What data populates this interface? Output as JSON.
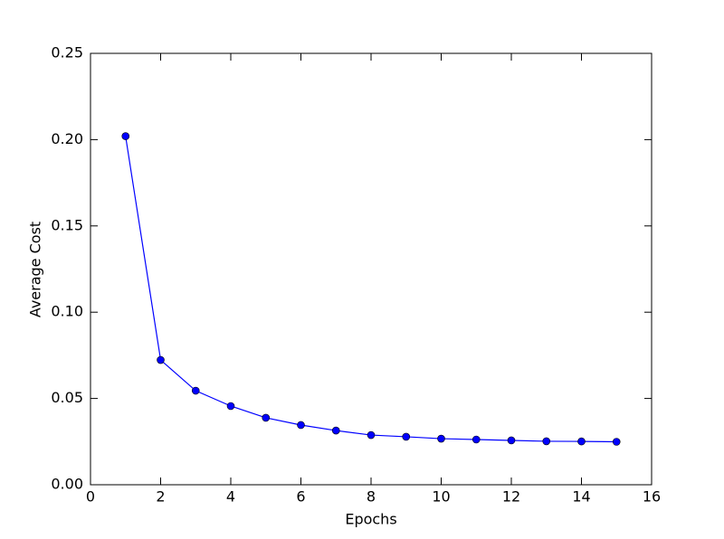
{
  "chart_data": {
    "type": "line",
    "xlabel": "Epochs",
    "ylabel": "Average Cost",
    "x": [
      1,
      2,
      3,
      4,
      5,
      6,
      7,
      8,
      9,
      10,
      11,
      12,
      13,
      14,
      15
    ],
    "series": [
      {
        "color": "#0000ff",
        "values": [
          0.202,
          0.0723,
          0.0545,
          0.0456,
          0.0388,
          0.0346,
          0.0314,
          0.0288,
          0.0278,
          0.0267,
          0.0262,
          0.0257,
          0.0252,
          0.0251,
          0.0249
        ]
      }
    ],
    "xlim": [
      0,
      16
    ],
    "xticks": [
      0,
      2,
      4,
      6,
      8,
      10,
      12,
      14,
      16
    ],
    "ylim": [
      0,
      0.25
    ],
    "yticks": [
      {
        "value": 0,
        "label": "0.00"
      },
      {
        "value": 0.05,
        "label": "0.05"
      },
      {
        "value": 0.1,
        "label": "0.10"
      },
      {
        "value": 0.15,
        "label": "0.15"
      },
      {
        "value": 0.2,
        "label": "0.20"
      },
      {
        "value": 0.25,
        "label": "0.25"
      }
    ],
    "grid": false
  }
}
